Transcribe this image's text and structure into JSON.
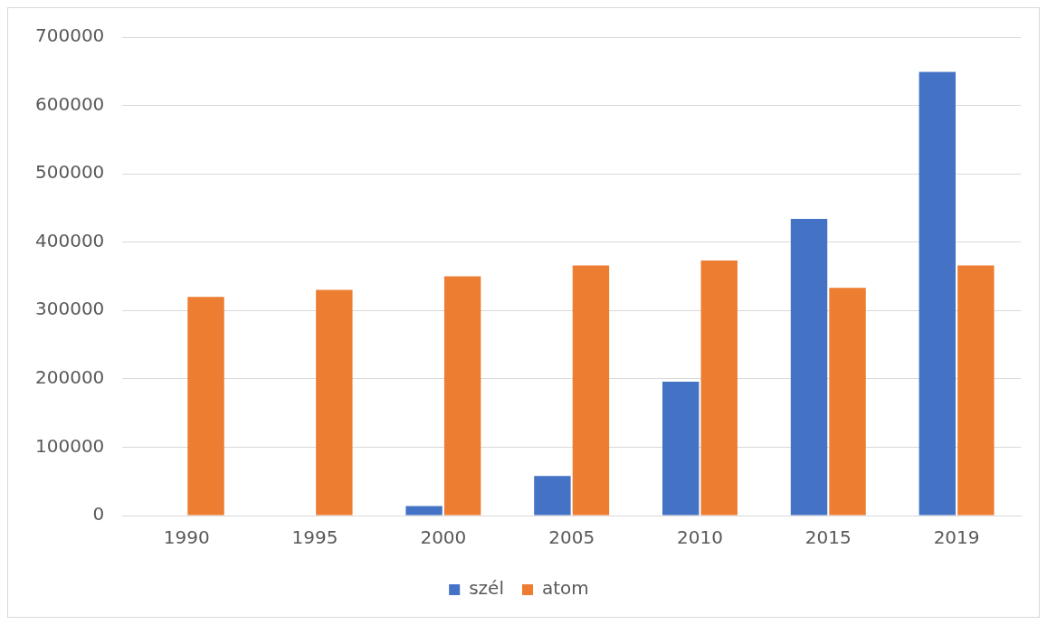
{
  "chart_data": {
    "type": "bar",
    "categories": [
      "1990",
      "1995",
      "2000",
      "2005",
      "2010",
      "2015",
      "2019"
    ],
    "series": [
      {
        "name": "szél",
        "color": "#4472c4",
        "values": [
          0,
          0,
          14000,
          58000,
          196000,
          434000,
          649000
        ]
      },
      {
        "name": "atom",
        "color": "#ed7d31",
        "values": [
          320000,
          330000,
          350000,
          366000,
          373000,
          333000,
          366000
        ]
      }
    ],
    "ylim": [
      0,
      700000
    ],
    "yticks": [
      0,
      100000,
      200000,
      300000,
      400000,
      500000,
      600000,
      700000
    ],
    "grid": "y",
    "legend": "bottom"
  }
}
